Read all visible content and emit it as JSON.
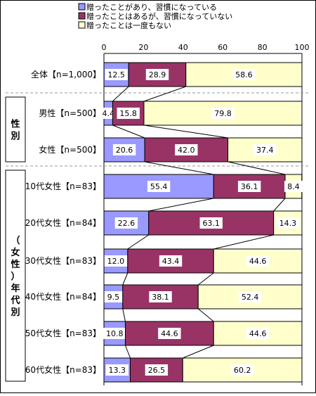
{
  "chart_data": {
    "type": "bar",
    "stacked": true,
    "orientation": "horizontal",
    "legend": [
      {
        "label": "贈ったことがあり、習慣になっている",
        "color": "#9999ff"
      },
      {
        "label": "贈ったことはあるが、習慣になっていない",
        "color": "#993366"
      },
      {
        "label": "贈ったことは一度もない",
        "color": "#ffffcc"
      }
    ],
    "axis": {
      "min": 0,
      "max": 100,
      "ticks": [
        "0",
        "20",
        "40",
        "60",
        "80",
        "100"
      ]
    },
    "groups": [
      {
        "label": "",
        "rows": [
          0
        ]
      },
      {
        "label": "性別",
        "rows": [
          1,
          2
        ]
      },
      {
        "label": "（女性）年代別",
        "rows": [
          3,
          4,
          5,
          6,
          7,
          8
        ]
      }
    ],
    "categories": [
      "全体【n=1,000】",
      "男性【n=500】",
      "女性【n=500】",
      "10代女性【n=83】",
      "20代女性【n=84】",
      "30代女性【n=83】",
      "40代女性【n=84】",
      "50代女性【n=83】",
      "60代女性【n=83】"
    ],
    "series": [
      {
        "name": "贈ったことがあり、習慣になっている",
        "values": [
          12.5,
          4.4,
          20.6,
          55.4,
          22.6,
          12.0,
          9.5,
          10.8,
          13.3
        ],
        "labels": [
          "12.5",
          "4.4",
          "20.6",
          "55.4",
          "22.6",
          "12.0",
          "9.5",
          "10.8",
          "13.3"
        ]
      },
      {
        "name": "贈ったことはあるが、習慣になっていない",
        "values": [
          28.9,
          15.8,
          42.0,
          36.1,
          63.1,
          43.4,
          38.1,
          44.6,
          26.5
        ],
        "labels": [
          "28.9",
          "15.8",
          "42.0",
          "36.1",
          "63.1",
          "43.4",
          "38.1",
          "44.6",
          "26.5"
        ]
      },
      {
        "name": "贈ったことは一度もない",
        "values": [
          58.6,
          79.8,
          37.4,
          8.4,
          14.3,
          44.6,
          52.4,
          44.6,
          60.2
        ],
        "labels": [
          "58.6",
          "79.8",
          "37.4",
          "8.4",
          "14.3",
          "44.6",
          "52.4",
          "44.6",
          "60.2"
        ]
      }
    ]
  }
}
